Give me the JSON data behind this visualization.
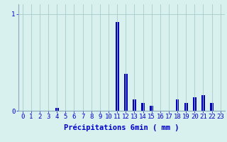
{
  "categories": [
    0,
    1,
    2,
    3,
    4,
    5,
    6,
    7,
    8,
    9,
    10,
    11,
    12,
    13,
    14,
    15,
    16,
    17,
    18,
    19,
    20,
    21,
    22,
    23
  ],
  "values": [
    0,
    0,
    0,
    0,
    0.03,
    0,
    0,
    0,
    0,
    0,
    0,
    0.92,
    0.38,
    0.12,
    0.08,
    0.05,
    0,
    0,
    0.12,
    0.08,
    0.14,
    0.16,
    0.08,
    0
  ],
  "bar_color": "#0000bb",
  "bg_color": "#d8f0ee",
  "axis_color": "#88aabb",
  "text_color": "#0000cc",
  "xlabel": "Précipitations 6min ( mm )",
  "ylim": [
    0,
    1.1
  ],
  "yticks": [
    0,
    1
  ],
  "ytick_labels": [
    "0",
    "1"
  ],
  "xlim": [
    -0.5,
    23.5
  ],
  "grid_color": "#aacccc",
  "label_fontsize": 7.5,
  "tick_fontsize": 6.5,
  "bar_width": 0.4
}
